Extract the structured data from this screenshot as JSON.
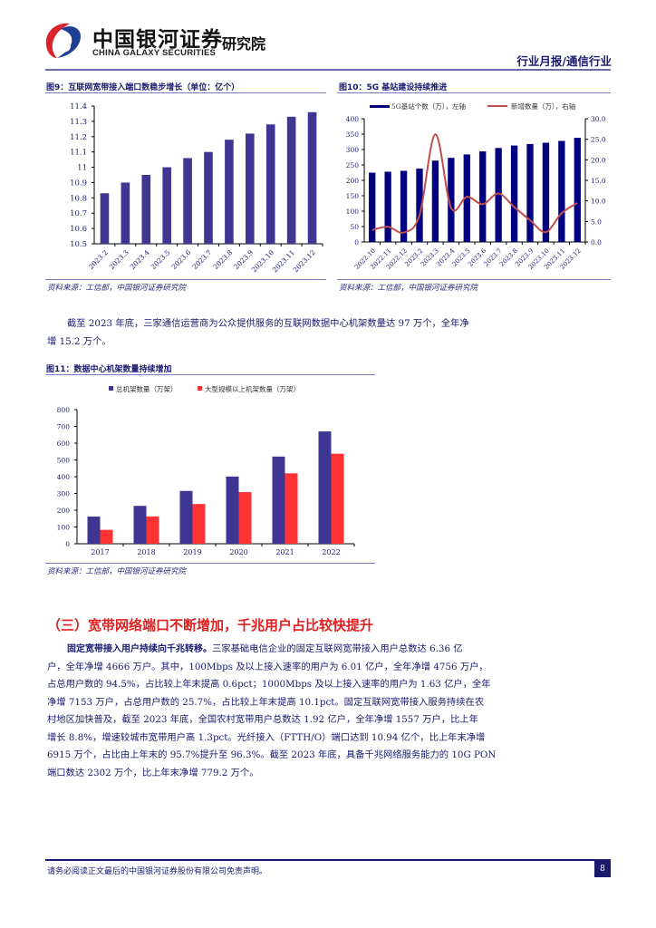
{
  "header": {
    "company_cn": "中国银河证券",
    "company_en": "CHINA GALAXY SECURITIES",
    "institute": "研究院",
    "report_type": "行业月报/通信行业",
    "colors": {
      "logo_red": "#d9232d",
      "logo_blue": "#1f3f95",
      "rule": "#6a6aaa"
    }
  },
  "figures": {
    "fig9": {
      "title": "图9：互联网宽带接入端口数稳步增长（单位：亿个）",
      "source": "资料来源：工信部，中国银河证券研究院"
    },
    "fig10": {
      "title": "图10：5G 基站建设持续推进",
      "source": "资料来源：工信部，中国银河证券研究院"
    },
    "fig11": {
      "title": "图11：数据中心机架数量持续增加",
      "source": "资料来源：工信部，中国银河证券研究院"
    }
  },
  "chart_data": [
    {
      "id": "fig9",
      "type": "bar",
      "title": "互联网宽带接入端口数稳步增长（单位：亿个）",
      "categories": [
        "2023.2",
        "2023.3",
        "2023.4",
        "2023.5",
        "2023.6",
        "2023.7",
        "2023.8",
        "2023.9",
        "2023.10",
        "2023.11",
        "2023.12"
      ],
      "values": [
        10.83,
        10.9,
        10.95,
        11.0,
        11.06,
        11.1,
        11.18,
        11.22,
        11.28,
        11.33,
        11.36
      ],
      "xlabel": "",
      "ylabel": "亿个",
      "ylim": [
        10.5,
        11.4
      ],
      "yticks": [
        "10.5",
        "10.6",
        "10.7",
        "10.8",
        "10.9",
        "11",
        "11.1",
        "11.2",
        "11.3",
        "11.4"
      ],
      "color": "#3f3693",
      "grid": false
    },
    {
      "id": "fig10",
      "type": "bar+line",
      "title": "5G 基站建设持续推进",
      "categories": [
        "2022.10",
        "2022.11",
        "2022.12",
        "2023.2",
        "2023.3",
        "2023.4",
        "2023.5",
        "2023.6",
        "2023.7",
        "2023.8",
        "2023.9",
        "2023.10",
        "2023.11",
        "2023.12"
      ],
      "series": [
        {
          "name": "5G基站个数（万），左轴",
          "type": "bar",
          "axis": "left",
          "color": "#000080",
          "values": [
            225,
            228,
            231,
            238,
            264,
            273,
            284,
            294,
            305,
            313,
            318,
            322,
            328,
            338
          ]
        },
        {
          "name": "新增数量（万），右轴",
          "type": "line",
          "axis": "right",
          "color": "#c0504d",
          "values": [
            2.9,
            3.7,
            2.3,
            6.5,
            26.2,
            8.3,
            11.0,
            9.2,
            11.8,
            8.5,
            5.3,
            2.4,
            7.0,
            9.5
          ]
        }
      ],
      "ylim_left": [
        0,
        400
      ],
      "yticks_left": [
        "0",
        "50",
        "100",
        "150",
        "200",
        "250",
        "300",
        "350",
        "400"
      ],
      "ylim_right": [
        0,
        30
      ],
      "yticks_right": [
        "0.0",
        "5.0",
        "10.0",
        "15.0",
        "20.0",
        "25.0",
        "30.0"
      ],
      "legend_position": "top",
      "grid": false
    },
    {
      "id": "fig11",
      "type": "bar",
      "title": "数据中心机架数量持续增加",
      "categories": [
        "2017",
        "2018",
        "2019",
        "2020",
        "2021",
        "2022"
      ],
      "series": [
        {
          "name": "总机架数量（万架）",
          "color": "#3f3693",
          "values": [
            162,
            226,
            315,
            401,
            520,
            670
          ]
        },
        {
          "name": "大型规模以上机架数量（万架）",
          "color": "#ff3333",
          "values": [
            83,
            163,
            237,
            308,
            420,
            537
          ]
        }
      ],
      "ylim": [
        0,
        800
      ],
      "yticks": [
        "0",
        "100",
        "200",
        "300",
        "400",
        "500",
        "600",
        "700",
        "800"
      ],
      "legend_position": "top",
      "grid": false
    }
  ],
  "body": {
    "para1_line1": "截至 2023 年底，三家通信运营商为公众提供服务的互联网数据中心机架数量达 97 万个，全年净",
    "para1_line2": "增 15.2 万个。",
    "section_title": "（三）宽带网络端口不断增加，千兆用户占比较快提升",
    "para2_lead": "固定宽带接入用户持续向千兆转移。",
    "para2_lines": [
      "三家基础电信企业的固定互联网宽带接入用户总数达 6.36 亿",
      "户，全年净增 4666 万户。其中，100Mbps 及以上接入速率的用户为 6.01 亿户，全年净增 4756 万户，",
      "占总用户数的 94.5%，占比较上年末提高 0.6pct；1000Mbps 及以上接入速率的用户为 1.63 亿户，全年",
      "净增 7153 万户，占总用户数的 25.7%，占比较上年末提高 10.1pct。固定互联网宽带接入服务持续在农",
      "村地区加快普及，截至 2023 年底，全国农村宽带用户总数达 1.92 亿户，全年净增 1557 万户，比上年",
      "增长 8.8%，增速较城市宽带用户高 1.3pct。光纤接入（FTTH/O）端口达到 10.94 亿个，比上年末净增",
      "6915 万个，占比由上年末的 95.7%提升至 96.3%。截至 2023 年底，具备千兆网络服务能力的 10G PON",
      "端口数达 2302 万个，比上年末净增 779.2 万个。"
    ]
  },
  "footer": {
    "disclaimer": "请务必阅读正文最后的中国银河证券股份有限公司免责声明。",
    "page_number": "8"
  }
}
